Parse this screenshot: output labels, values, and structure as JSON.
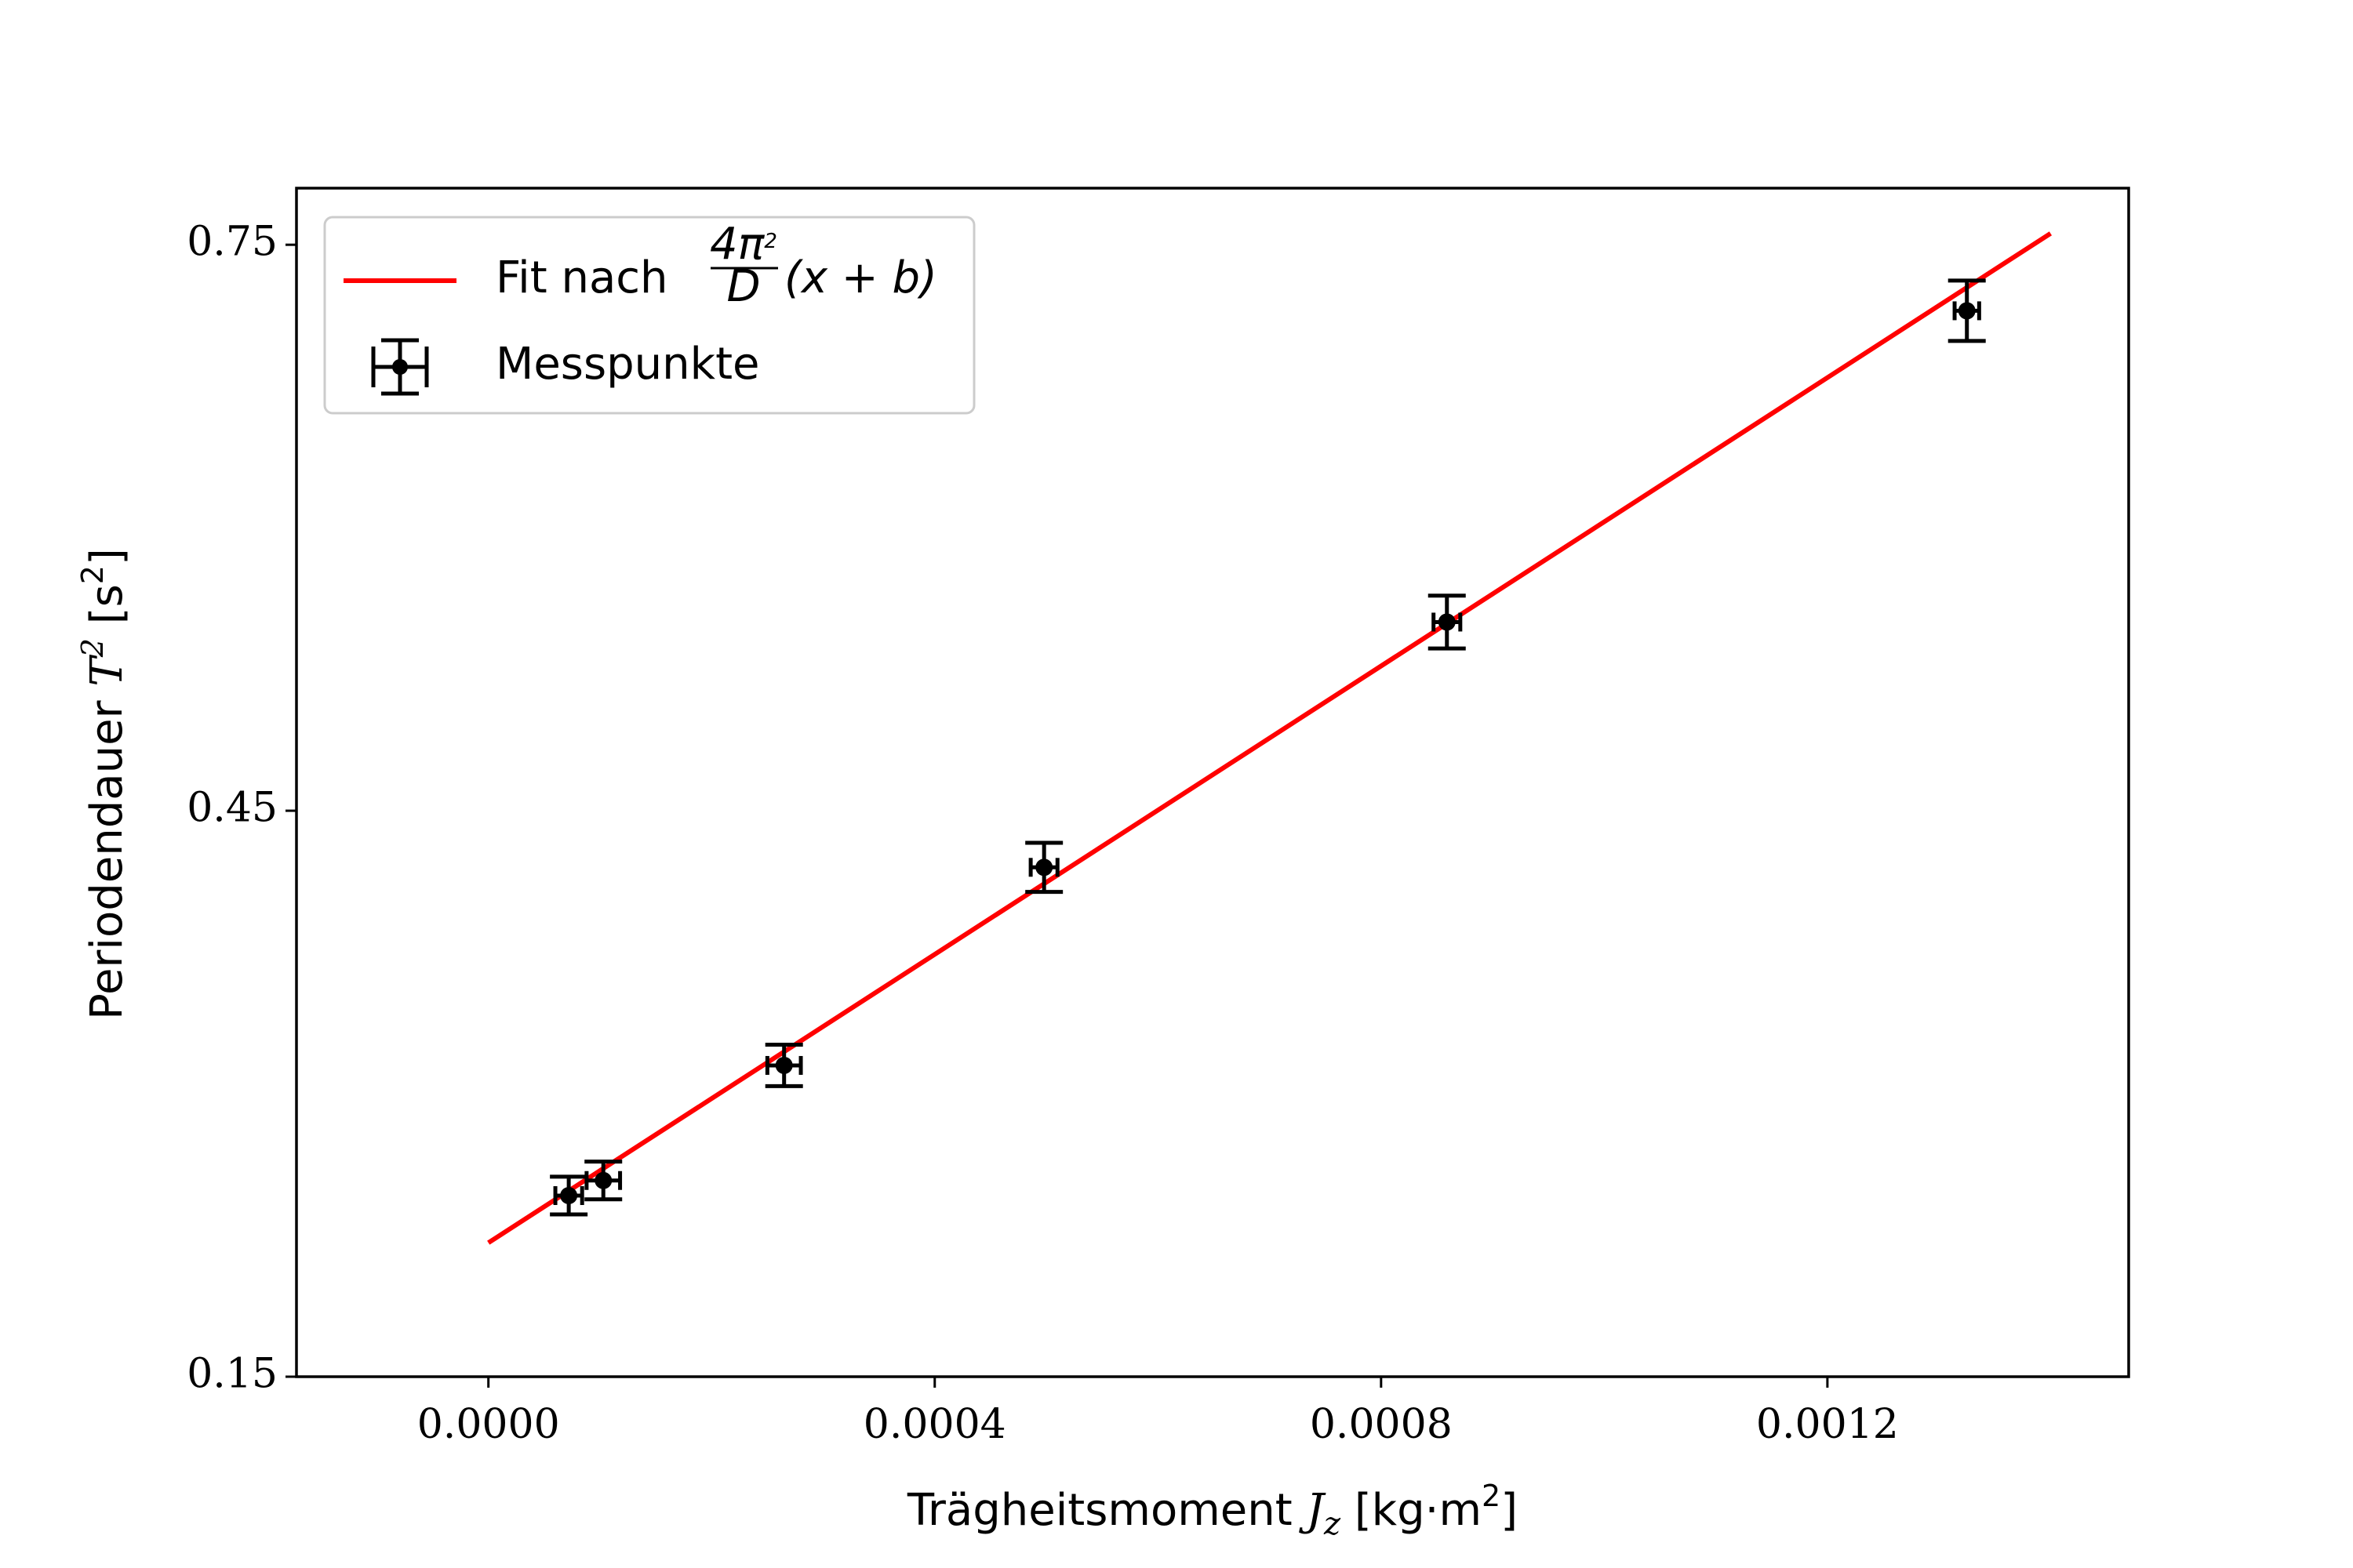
{
  "chart_data": {
    "type": "scatter",
    "xlabel": {
      "prefix": "Trägheitsmoment ",
      "var": "J",
      "sub": "z",
      "unit_pre": " [kg·m",
      "unit_sup": "2",
      "unit_post": "]"
    },
    "ylabel": {
      "prefix": "Periodendauer ",
      "var": "T",
      "sup": "2",
      "unit_pre": " [s",
      "unit_sup": "2",
      "unit_post": "]"
    },
    "xlim": [
      -0.000172,
      0.00147
    ],
    "ylim": [
      0.15,
      0.78
    ],
    "xticks": [
      0.0,
      0.0004,
      0.0008,
      0.0012
    ],
    "xtick_labels": [
      "0.0000",
      "0.0004",
      "0.0008",
      "0.0012"
    ],
    "yticks": [
      0.15,
      0.45,
      0.75
    ],
    "ytick_labels": [
      "0.15",
      "0.45",
      "0.75"
    ],
    "grid": false,
    "legend_position": "top-left",
    "series": [
      {
        "name": "Fit nach 4π²/D (x + b)",
        "kind": "line",
        "color": "#ff0000",
        "x": [
          0.0,
          0.0014
        ],
        "y": [
          0.221,
          0.756
        ]
      },
      {
        "name": "Messpunkte",
        "kind": "errorbar",
        "color": "#000000",
        "points": [
          {
            "x": 7.2e-05,
            "y": 0.246,
            "xerr": 1.2e-05,
            "yerr": 0.01
          },
          {
            "x": 0.000103,
            "y": 0.254,
            "xerr": 1.5e-05,
            "yerr": 0.01
          },
          {
            "x": 0.000265,
            "y": 0.315,
            "xerr": 1.5e-05,
            "yerr": 0.011
          },
          {
            "x": 0.000498,
            "y": 0.42,
            "xerr": 1.2e-05,
            "yerr": 0.013
          },
          {
            "x": 0.000859,
            "y": 0.55,
            "xerr": 1.2e-05,
            "yerr": 0.014
          },
          {
            "x": 0.001325,
            "y": 0.715,
            "xerr": 1.1e-05,
            "yerr": 0.016
          }
        ]
      }
    ],
    "legend": {
      "fit_label_text": "Fit nach ",
      "fit_formula_num": "4π",
      "fit_formula_num_sup": "2",
      "fit_formula_den": "D",
      "fit_formula_tail": "(x + b)",
      "points_label": "Messpunkte"
    }
  }
}
